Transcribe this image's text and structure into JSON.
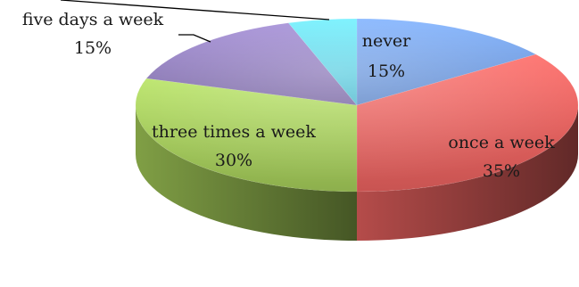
{
  "chart_data": {
    "type": "pie",
    "style": "3d",
    "title": "",
    "slices": [
      {
        "label": "never",
        "value": 15,
        "display": "15%",
        "color": "#6f9de8"
      },
      {
        "label": "once a week",
        "value": 35,
        "display": "35%",
        "color": "#e8625f"
      },
      {
        "label": "three times a week",
        "value": 30,
        "display": "30%",
        "color": "#a4cc59"
      },
      {
        "label": "five days a week",
        "value": 15,
        "display": "15%",
        "color": "#8e79be"
      },
      {
        "label": "",
        "value": 5,
        "display": "",
        "color": "#5ed6ef"
      }
    ]
  }
}
